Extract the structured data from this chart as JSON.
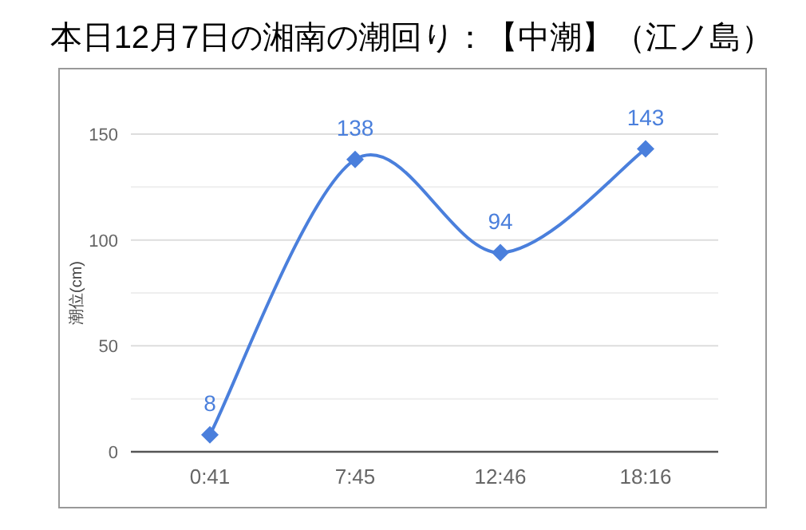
{
  "chart_data": {
    "type": "line",
    "title": "本日12月7日の湘南の潮回り：【中潮】（江ノ島）",
    "ylabel": "潮位(cm)",
    "categories": [
      "0:41",
      "7:45",
      "12:46",
      "18:16"
    ],
    "series": [
      {
        "color": "#4a7fdc",
        "values": [
          8,
          138,
          94,
          143
        ]
      }
    ],
    "ylim": [
      0,
      150
    ],
    "yticks": [
      0,
      {
        "value": 25,
        "label": null
      },
      50,
      {
        "value": 75,
        "label": null
      },
      100,
      {
        "value": 125,
        "label": null
      },
      150
    ],
    "grid": "y",
    "data_labels": true,
    "marker": "diamond",
    "line_style": "solid"
  }
}
